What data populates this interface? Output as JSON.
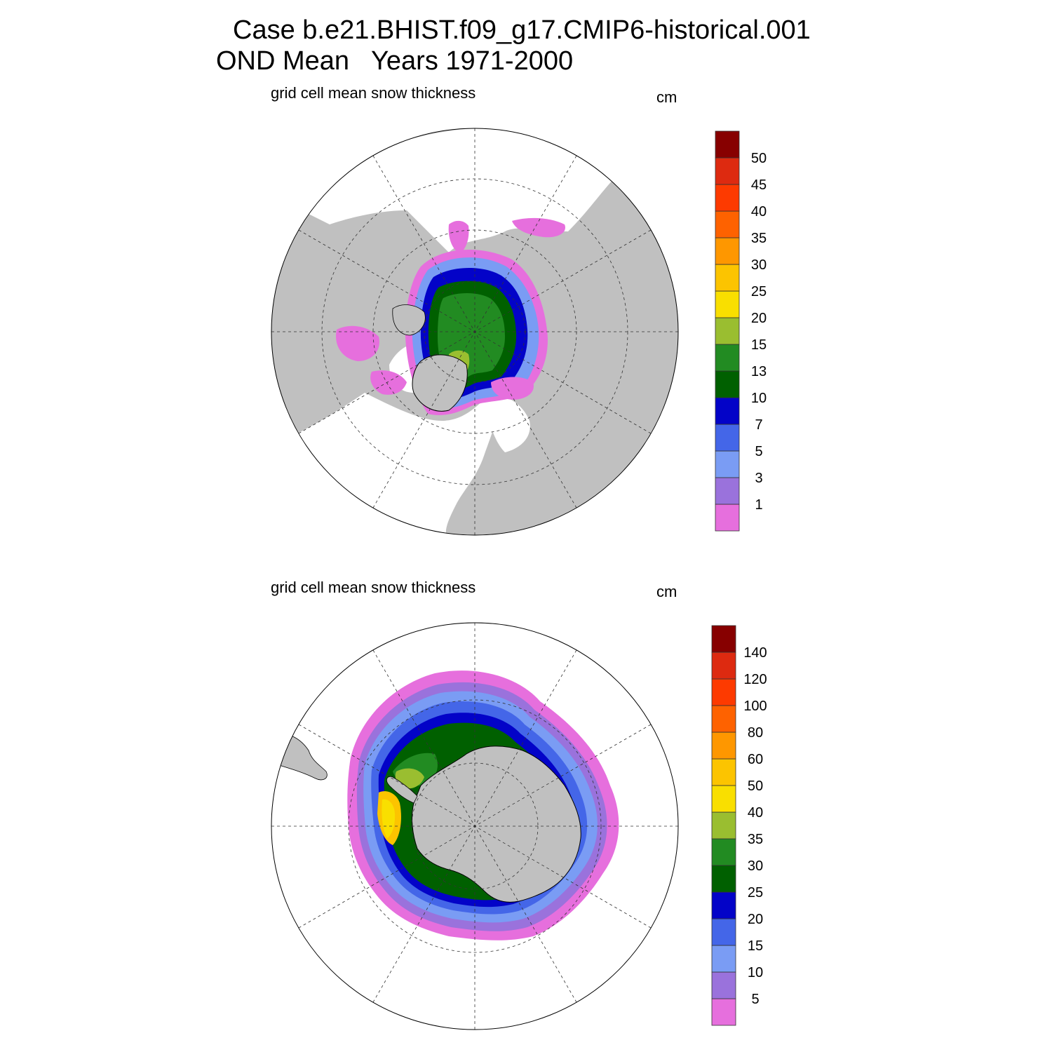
{
  "header": {
    "case_line": "Case b.e21.BHIST.f09_g17.CMIP6-historical.001",
    "period_line": "OND Mean   Years 1971-2000"
  },
  "panels": [
    {
      "id": "north",
      "variable_label": "grid cell mean snow thickness",
      "units_label": "cm",
      "colorbar": {
        "colors": [
          "#e66fdd",
          "#9a72dc",
          "#7a9cf4",
          "#4466e8",
          "#0303c8",
          "#006000",
          "#228b22",
          "#9abe30",
          "#f9df00",
          "#fcc400",
          "#fe9700",
          "#fe6200",
          "#fd3a00",
          "#dd2a10",
          "#870000"
        ],
        "tick_labels": [
          "1",
          "3",
          "5",
          "7",
          "10",
          "13",
          "15",
          "20",
          "25",
          "30",
          "35",
          "40",
          "45",
          "50"
        ]
      }
    },
    {
      "id": "south",
      "variable_label": "grid cell mean snow thickness",
      "units_label": "cm",
      "colorbar": {
        "colors": [
          "#e66fdd",
          "#9a72dc",
          "#7a9cf4",
          "#4466e8",
          "#0303c8",
          "#006000",
          "#228b22",
          "#9abe30",
          "#f9df00",
          "#fcc400",
          "#fe9700",
          "#fe6200",
          "#fd3a00",
          "#dd2a10",
          "#870000"
        ],
        "tick_labels": [
          "5",
          "10",
          "15",
          "20",
          "25",
          "30",
          "35",
          "40",
          "50",
          "60",
          "80",
          "100",
          "120",
          "140"
        ]
      }
    }
  ],
  "map_colors": {
    "land": "#c0c0c0",
    "ocean": "#ffffff"
  }
}
